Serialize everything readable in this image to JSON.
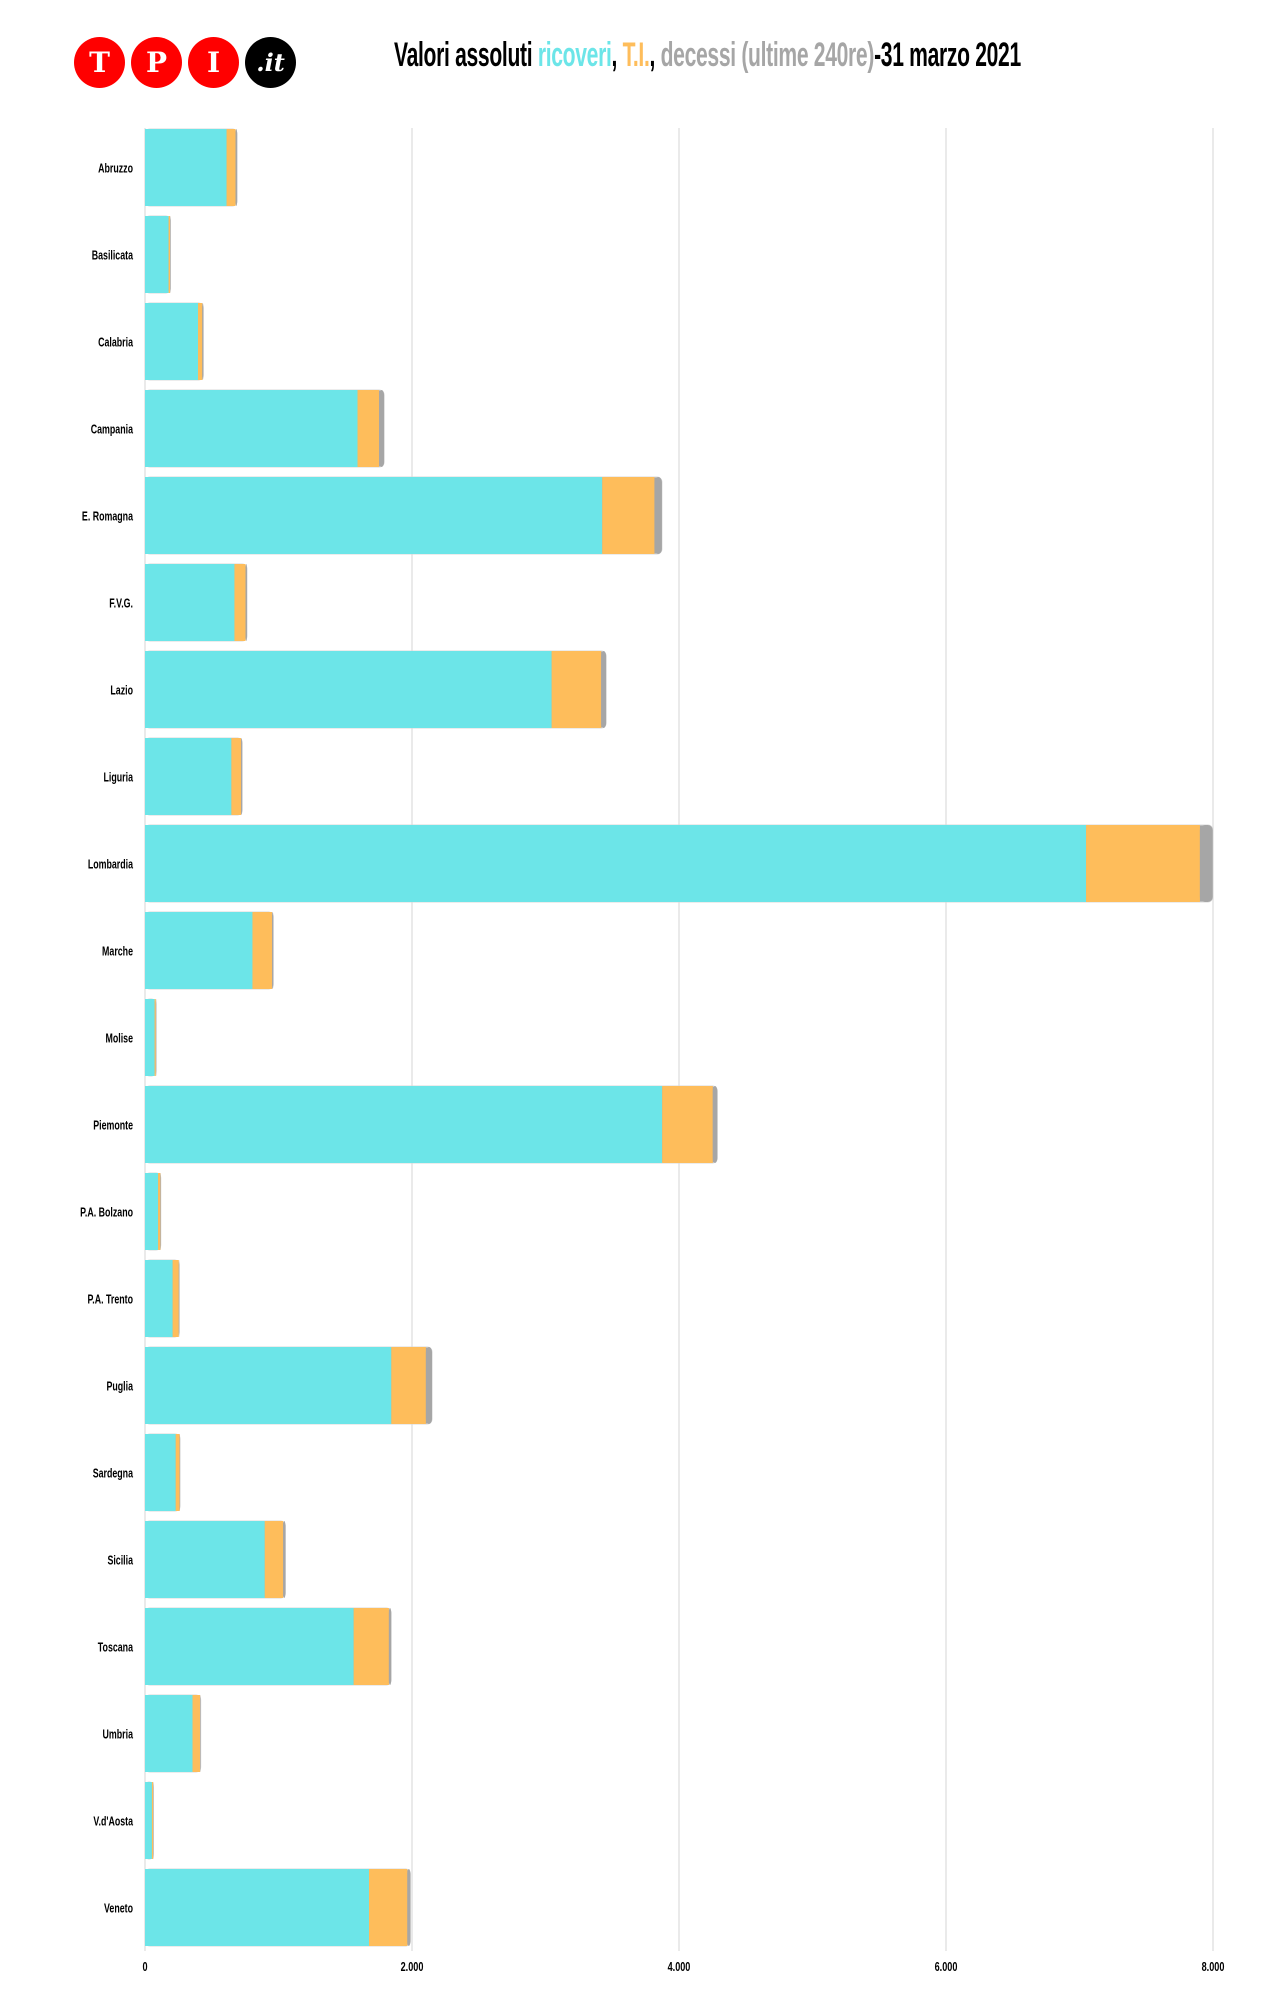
{
  "logo": {
    "letters": [
      "T",
      "P",
      "I",
      ".it"
    ]
  },
  "title": {
    "part1": "Valori assoluti ",
    "ricoveri": "ricoveri",
    "sep1": ", ",
    "ti": "T.I.",
    "sep2": ", ",
    "decessi": "decessi (ultime 240re)",
    "date": "-31 marzo 2021"
  },
  "colors": {
    "ricoveri": "#6ce5e8",
    "ti": "#febd5b",
    "decessi": "#a6a6a6",
    "grid": "#dddddd"
  },
  "chart_data": {
    "type": "bar",
    "orientation": "horizontal",
    "stacked": true,
    "title": "Valori assoluti ricoveri, T.I., decessi (ultime 240re)-31 marzo 2021",
    "categories": [
      "Abruzzo",
      "Basilicata",
      "Calabria",
      "Campania",
      "E. Romagna",
      "F.V.G.",
      "Lazio",
      "Liguria",
      "Lombardia",
      "Marche",
      "Molise",
      "Piemonte",
      "P.A. Bolzano",
      "P.A. Trento",
      "Puglia",
      "Sardegna",
      "Sicilia",
      "Toscana",
      "Umbria",
      "V.d'Aosta",
      "Veneto"
    ],
    "series": [
      {
        "name": "ricoveri",
        "values": [
          611,
          177,
          397,
          1592,
          3425,
          670,
          3046,
          647,
          7049,
          805,
          72,
          3874,
          98,
          207,
          1845,
          230,
          897,
          1563,
          356,
          52,
          1678
        ]
      },
      {
        "name": "T.I.",
        "values": [
          67,
          11,
          32,
          161,
          391,
          83,
          371,
          72,
          853,
          147,
          9,
          379,
          17,
          46,
          259,
          29,
          138,
          264,
          57,
          9,
          287
        ]
      },
      {
        "name": "decessi",
        "values": [
          12,
          3,
          8,
          38,
          56,
          11,
          37,
          9,
          96,
          9,
          2,
          34,
          3,
          4,
          46,
          3,
          17,
          17,
          4,
          1,
          23
        ]
      }
    ],
    "xlim": [
      0,
      8000
    ],
    "xticks": [
      0,
      2000,
      4000,
      6000,
      8000
    ],
    "xtick_labels": [
      "0",
      "2.000",
      "4.000",
      "6.000",
      "8.000"
    ],
    "grid": true,
    "xlabel": "",
    "ylabel": ""
  }
}
